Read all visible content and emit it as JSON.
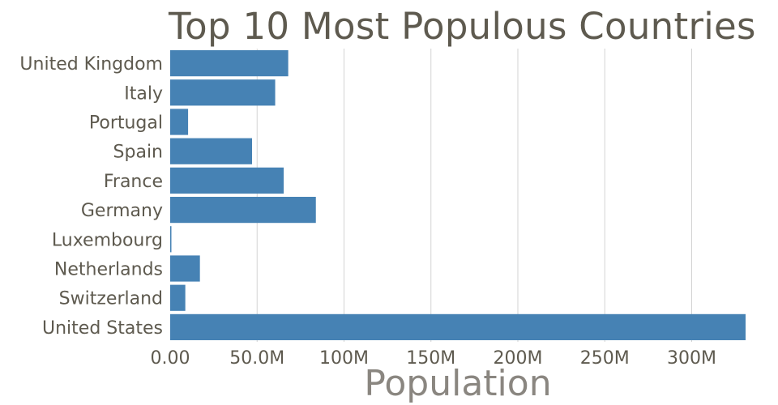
{
  "chart_data": {
    "type": "bar",
    "orientation": "horizontal",
    "title": "Top 10 Most Populous Countries",
    "xlabel": "Population",
    "ylabel": "",
    "categories": [
      "United Kingdom",
      "Italy",
      "Portugal",
      "Spain",
      "France",
      "Germany",
      "Luxembourg",
      "Netherlands",
      "Switzerland",
      "United States"
    ],
    "values": [
      67900000,
      60400000,
      10300000,
      47100000,
      65300000,
      83800000,
      630000,
      17100000,
      8700000,
      331000000
    ],
    "xlim": [
      0,
      331000000
    ],
    "xticks": [
      0,
      50000000,
      100000000,
      150000000,
      200000000,
      250000000,
      300000000
    ],
    "xtick_labels": [
      "0.00",
      "50.0M",
      "100M",
      "150M",
      "200M",
      "250M",
      "300M"
    ],
    "grid": true,
    "bar_color": "#4682b4"
  }
}
